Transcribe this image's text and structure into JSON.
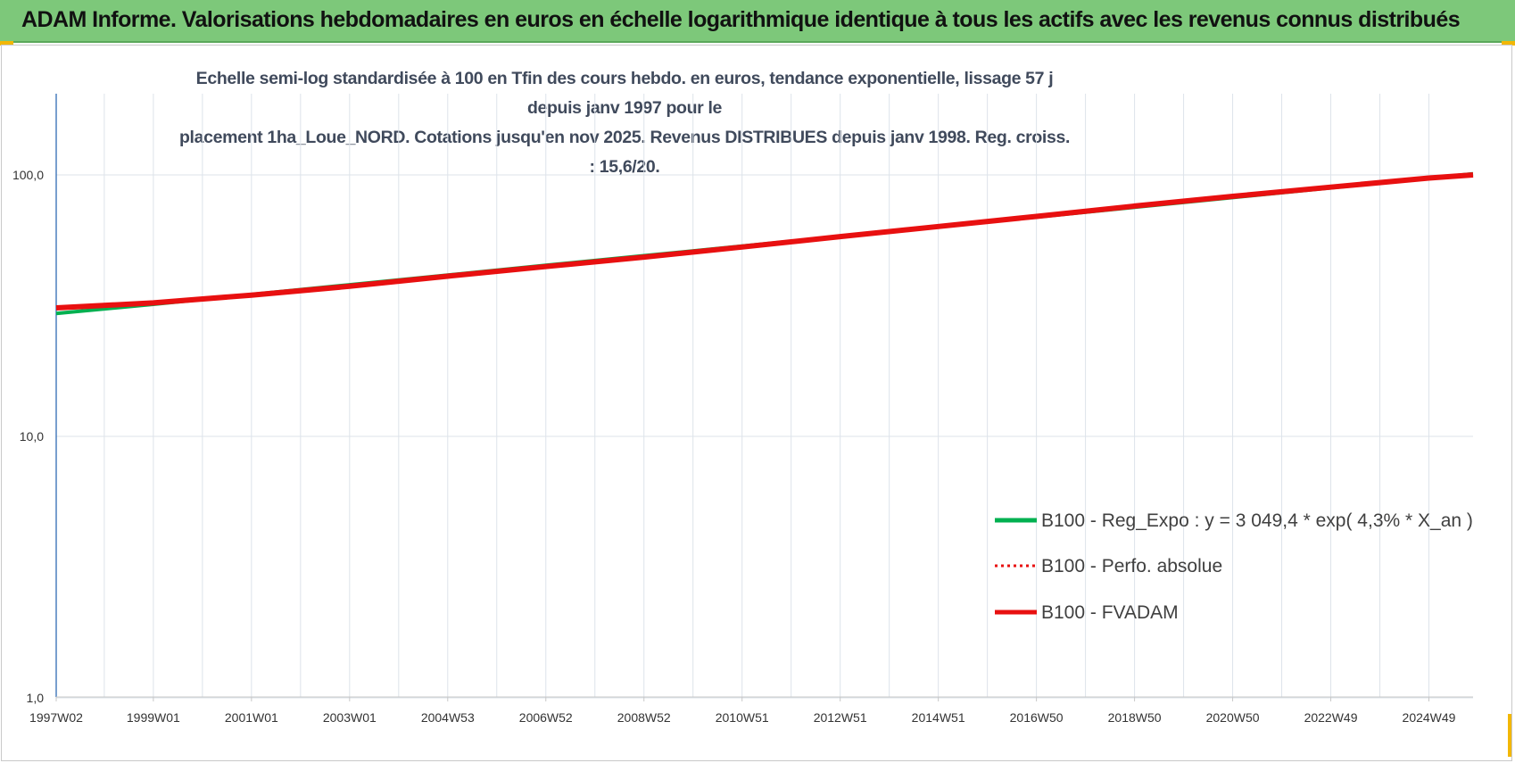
{
  "header": {
    "title": "ADAM Informe. Valorisations hebdomadaires en euros en échelle logarithmique identique à tous les actifs avec les revenus connus distribués"
  },
  "chart_data": {
    "type": "line",
    "title": "Echelle semi-log standardisée à 100 en Tfin des cours hebdo. en euros, tendance exponentielle, lissage 57 j depuis janv 1997 pour le placement 1ha_Loue_NORD. Cotations jusqu'en nov 2025. Revenus DISTRIBUES depuis janv 1998. Reg. croiss. : 15,6/20.",
    "title_lines": [
      "Echelle semi-log standardisée à 100 en Tfin des cours hebdo. en euros, tendance exponentielle, lissage 57 j depuis janv 1997 pour le",
      "placement 1ha_Loue_NORD. Cotations jusqu'en nov 2025. Revenus DISTRIBUES depuis janv 1998. Reg. croiss. : 15,6/20."
    ],
    "y_scale": "log",
    "ylim": [
      1,
      200
    ],
    "y_ticks": [
      1,
      10,
      100
    ],
    "y_tick_labels": [
      "1,0",
      "10,0",
      "100,0"
    ],
    "x_range": [
      1997.02,
      2025.9
    ],
    "x_ticks": [
      1997.02,
      1999.0,
      2001.0,
      2003.0,
      2005.0,
      2007.0,
      2009.0,
      2011.0,
      2013.0,
      2015.0,
      2017.0,
      2019.0,
      2021.0,
      2023.0,
      2025.0
    ],
    "x_tick_labels": [
      "1997W02",
      "1999W01",
      "2001W01",
      "2003W01",
      "2004W53",
      "2006W52",
      "2008W52",
      "2010W51",
      "2012W51",
      "2014W51",
      "2016W50",
      "2018W50",
      "2020W50",
      "2022W49",
      "2024W49"
    ],
    "grid": true,
    "legend_position": "lower-right",
    "series": [
      {
        "name": "B100 - Reg_Expo : y = 3 049,4 * exp( 4,3% *  X_an )",
        "color": "#00b050",
        "style": "solid",
        "x": [
          1997.02,
          1999.0,
          2001.0,
          2003.0,
          2005.0,
          2007.0,
          2009.0,
          2011.0,
          2013.0,
          2015.0,
          2017.0,
          2019.0,
          2021.0,
          2023.0,
          2025.0,
          2025.9
        ],
        "values": [
          29.5,
          32.0,
          34.9,
          38.0,
          41.4,
          45.1,
          49.1,
          53.4,
          58.2,
          63.4,
          69.0,
          75.2,
          81.9,
          89.2,
          97.1,
          101.0
        ]
      },
      {
        "name": "B100 - Perfo. absolue",
        "color": "#e81010",
        "style": "dotted",
        "x": [
          1997.02,
          1999.0,
          2001.0,
          2003.0,
          2005.0,
          2007.0,
          2009.0,
          2011.0,
          2013.0,
          2015.0,
          2017.0,
          2019.0,
          2021.0,
          2023.0,
          2025.0,
          2025.9
        ],
        "values": [
          31.0,
          32.4,
          34.7,
          37.5,
          41.0,
          44.6,
          48.5,
          53.0,
          58.1,
          63.5,
          69.4,
          76.0,
          82.8,
          89.8,
          97.3,
          100.0
        ]
      },
      {
        "name": "B100 - FVADAM",
        "color": "#e81010",
        "style": "solid",
        "x": [
          1997.02,
          1999.0,
          2001.0,
          2003.0,
          2005.0,
          2007.0,
          2009.0,
          2011.0,
          2013.0,
          2015.0,
          2017.0,
          2019.0,
          2021.0,
          2023.0,
          2025.0,
          2025.9
        ],
        "values": [
          31.0,
          32.4,
          34.7,
          37.5,
          41.0,
          44.6,
          48.5,
          53.0,
          58.1,
          63.5,
          69.4,
          76.0,
          82.8,
          89.8,
          97.3,
          100.0
        ]
      }
    ]
  }
}
